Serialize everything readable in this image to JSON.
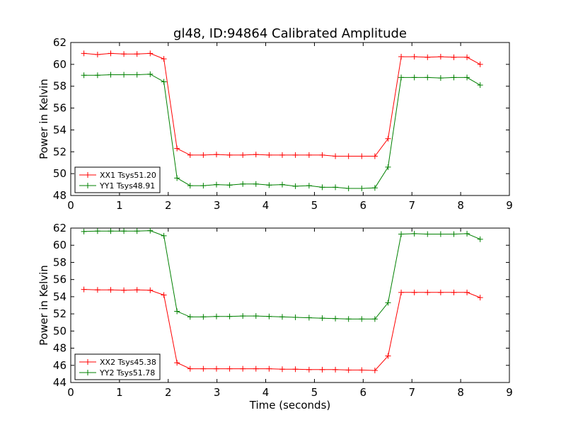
{
  "title": "gl48, ID:94864 Calibrated Amplitude",
  "chart_data": [
    {
      "type": "line",
      "ylabel": "Power in Kelvin",
      "xlabel": "",
      "xlim": [
        0,
        9
      ],
      "ylim": [
        48,
        62
      ],
      "xticks": [
        0,
        1,
        2,
        3,
        4,
        5,
        6,
        7,
        8,
        9
      ],
      "yticks": [
        48,
        50,
        52,
        54,
        56,
        58,
        60,
        62
      ],
      "grid": false,
      "legend": "bottom-left",
      "x": [
        0.27,
        0.55,
        0.82,
        1.09,
        1.36,
        1.63,
        1.91,
        2.18,
        2.45,
        2.72,
        2.99,
        3.26,
        3.53,
        3.8,
        4.07,
        4.34,
        4.61,
        4.89,
        5.16,
        5.43,
        5.7,
        5.97,
        6.24,
        6.51,
        6.78,
        7.05,
        7.32,
        7.59,
        7.86,
        8.13,
        8.4
      ],
      "series": [
        {
          "name": "XX1 Tsys51.20",
          "color": "#ff0000",
          "values": [
            61.0,
            60.9,
            61.0,
            60.95,
            60.95,
            61.0,
            60.5,
            52.3,
            51.7,
            51.7,
            51.75,
            51.7,
            51.7,
            51.75,
            51.7,
            51.7,
            51.7,
            51.7,
            51.7,
            51.6,
            51.6,
            51.6,
            51.6,
            53.2,
            60.7,
            60.7,
            60.65,
            60.7,
            60.65,
            60.65,
            60.0
          ]
        },
        {
          "name": "YY1 Tsys48.91",
          "color": "#008000",
          "values": [
            59.0,
            59.0,
            59.05,
            59.05,
            59.05,
            59.1,
            58.4,
            49.6,
            48.9,
            48.9,
            49.0,
            48.95,
            49.05,
            49.05,
            48.95,
            49.0,
            48.85,
            48.9,
            48.75,
            48.75,
            48.65,
            48.65,
            48.7,
            50.6,
            58.8,
            58.8,
            58.8,
            58.75,
            58.8,
            58.8,
            58.1
          ]
        }
      ]
    },
    {
      "type": "line",
      "ylabel": "Power in Kelvin",
      "xlabel": "Time (seconds)",
      "xlim": [
        0,
        9
      ],
      "ylim": [
        44,
        62
      ],
      "xticks": [
        0,
        1,
        2,
        3,
        4,
        5,
        6,
        7,
        8,
        9
      ],
      "yticks": [
        44,
        46,
        48,
        50,
        52,
        54,
        56,
        58,
        60,
        62
      ],
      "grid": false,
      "legend": "bottom-left",
      "x": [
        0.27,
        0.55,
        0.82,
        1.09,
        1.36,
        1.63,
        1.91,
        2.18,
        2.45,
        2.72,
        2.99,
        3.26,
        3.53,
        3.8,
        4.07,
        4.34,
        4.61,
        4.89,
        5.16,
        5.43,
        5.7,
        5.97,
        6.24,
        6.51,
        6.78,
        7.05,
        7.32,
        7.59,
        7.86,
        8.13,
        8.4
      ],
      "series": [
        {
          "name": "XX2 Tsys45.38",
          "color": "#ff0000",
          "values": [
            54.85,
            54.8,
            54.8,
            54.75,
            54.8,
            54.75,
            54.2,
            46.3,
            45.6,
            45.6,
            45.6,
            45.6,
            45.6,
            45.6,
            45.6,
            45.55,
            45.55,
            45.5,
            45.5,
            45.5,
            45.45,
            45.45,
            45.4,
            47.1,
            54.5,
            54.5,
            54.5,
            54.5,
            54.5,
            54.5,
            53.9
          ]
        },
        {
          "name": "YY2 Tsys51.78",
          "color": "#008000",
          "values": [
            61.6,
            61.65,
            61.65,
            61.65,
            61.65,
            61.7,
            61.1,
            52.3,
            51.65,
            51.65,
            51.7,
            51.7,
            51.75,
            51.75,
            51.7,
            51.65,
            51.6,
            51.55,
            51.5,
            51.45,
            51.4,
            51.4,
            51.4,
            53.3,
            61.3,
            61.35,
            61.3,
            61.3,
            61.3,
            61.35,
            60.7
          ]
        }
      ]
    }
  ]
}
